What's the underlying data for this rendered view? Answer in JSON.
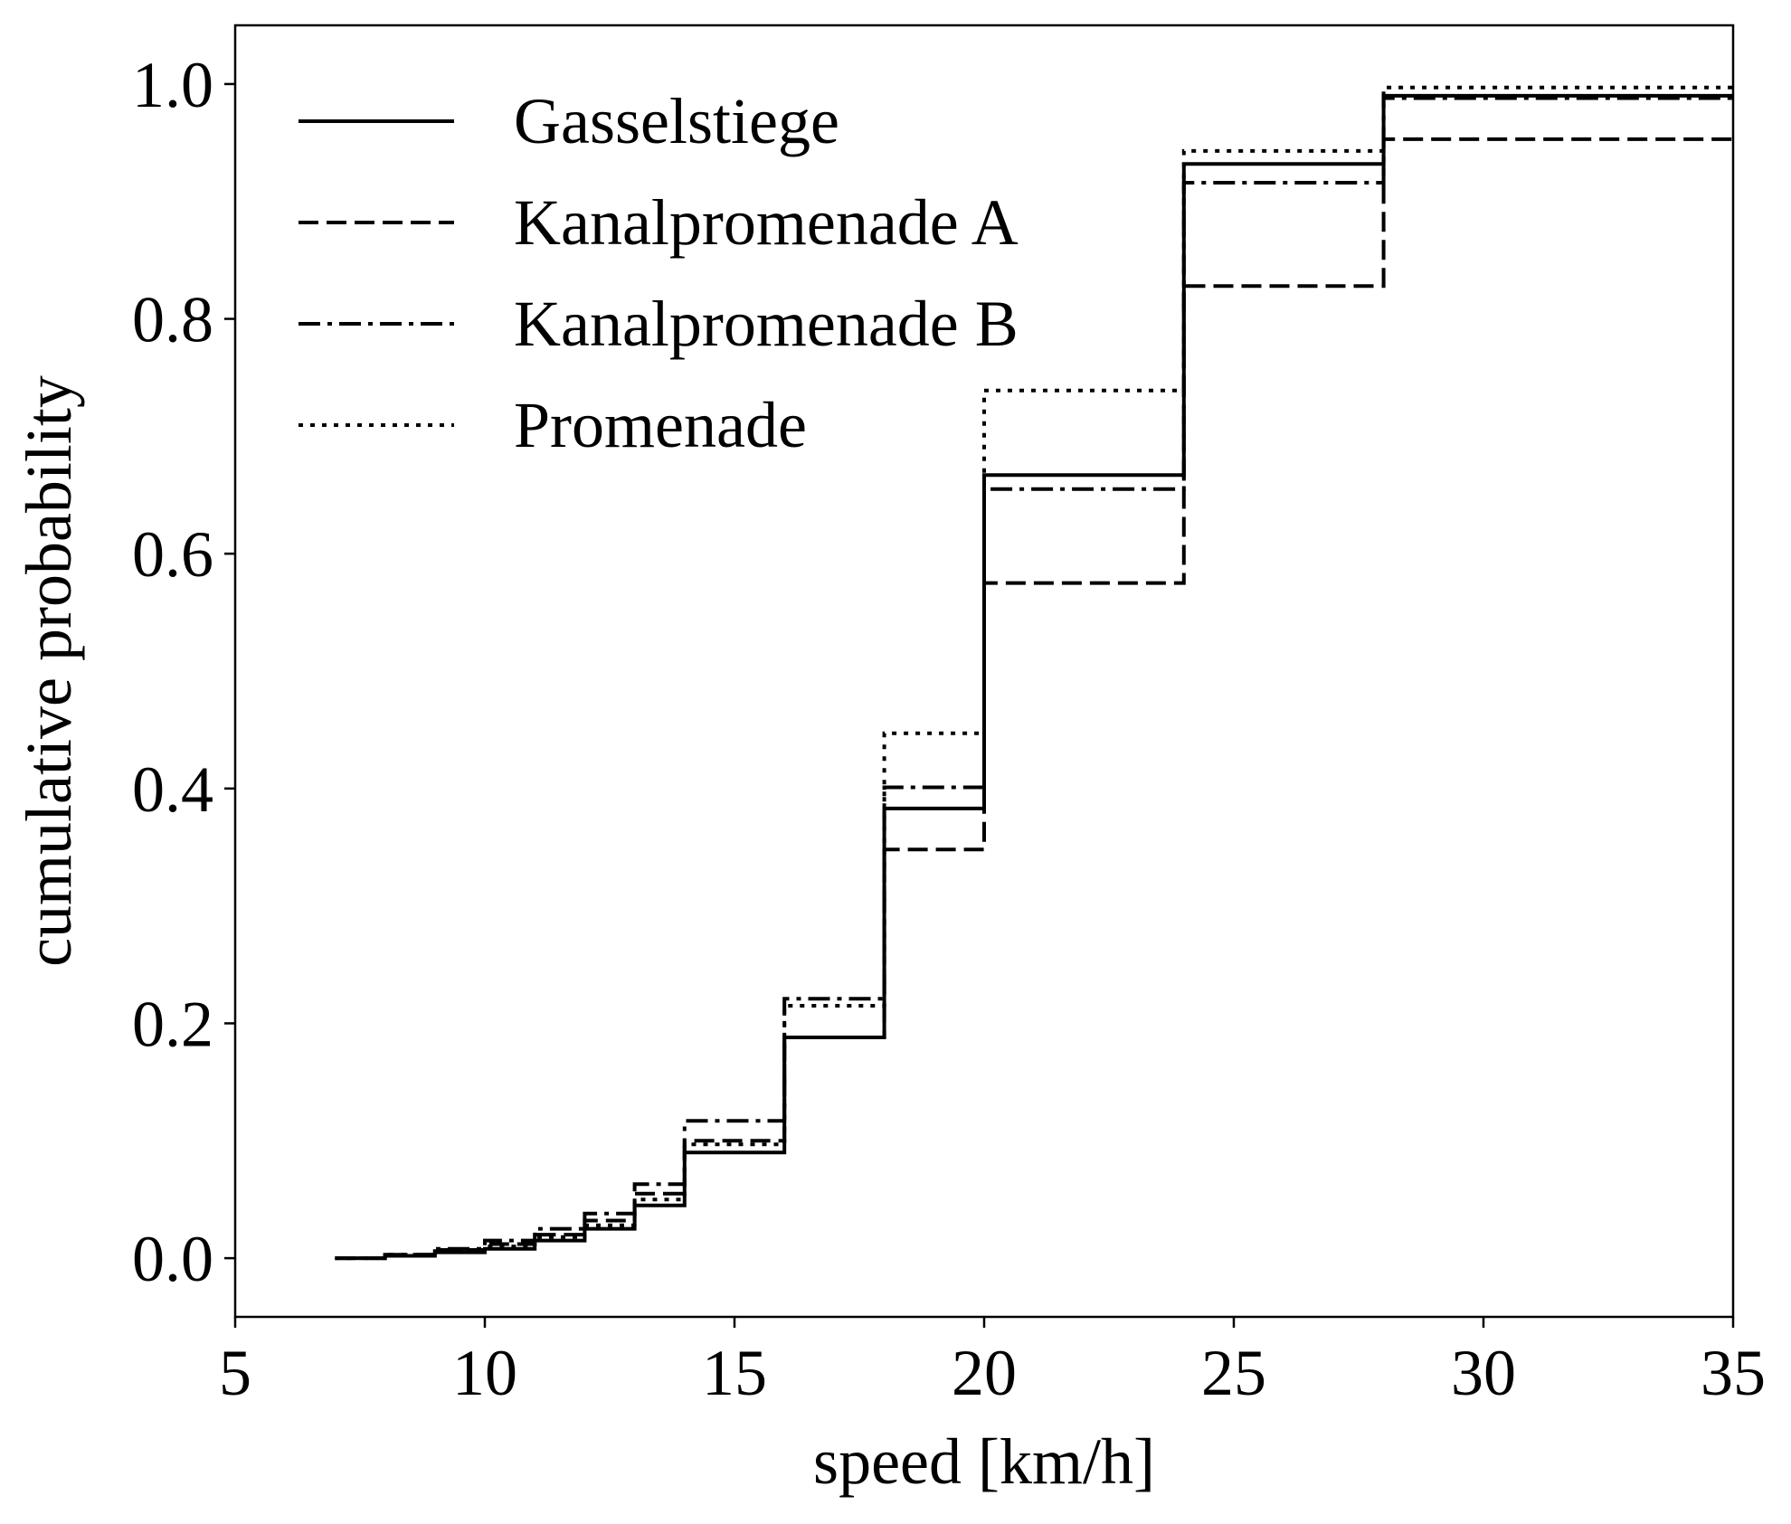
{
  "chart_data": {
    "type": "line",
    "title": "",
    "xlabel": "speed [km/h]",
    "ylabel": "cumulative probability",
    "xlim": [
      5,
      35
    ],
    "ylim": [
      -0.05,
      1.05
    ],
    "xticks": [
      5,
      10,
      15,
      20,
      25,
      30,
      35
    ],
    "xtick_labels": [
      "5",
      "10",
      "15",
      "20",
      "25",
      "30",
      "35"
    ],
    "yticks": [
      0.0,
      0.2,
      0.4,
      0.6,
      0.8,
      1.0
    ],
    "ytick_labels": [
      "0.0",
      "0.2",
      "0.4",
      "0.6",
      "0.8",
      "1.0"
    ],
    "grid": false,
    "legend_position": "top-left",
    "step": "post",
    "series": [
      {
        "name": "Gasselstiege",
        "line_style": "solid",
        "color": "#000000",
        "x": [
          7,
          8,
          9,
          10,
          11,
          12,
          13,
          14,
          16,
          18,
          20,
          24,
          28,
          35
        ],
        "y": [
          0.0,
          0.002,
          0.005,
          0.008,
          0.015,
          0.025,
          0.045,
          0.09,
          0.188,
          0.383,
          0.667,
          0.932,
          0.99,
          0.99
        ]
      },
      {
        "name": "Kanalpromenade A",
        "line_style": "dashed",
        "color": "#000000",
        "x": [
          7,
          8,
          9,
          10,
          11,
          12,
          13,
          14,
          16,
          18,
          20,
          24,
          28,
          35
        ],
        "y": [
          0.0,
          0.003,
          0.007,
          0.012,
          0.02,
          0.032,
          0.055,
          0.1,
          0.188,
          0.348,
          0.575,
          0.828,
          0.953,
          0.953
        ]
      },
      {
        "name": "Kanalpromenade B",
        "line_style": "dashdot",
        "color": "#000000",
        "x": [
          7,
          8,
          9,
          10,
          11,
          12,
          13,
          14,
          16,
          18,
          20,
          24,
          28,
          35
        ],
        "y": [
          0.0,
          0.003,
          0.008,
          0.015,
          0.025,
          0.038,
          0.063,
          0.117,
          0.221,
          0.401,
          0.655,
          0.916,
          0.988,
          0.988
        ]
      },
      {
        "name": "Promenade",
        "line_style": "dotted",
        "color": "#000000",
        "x": [
          7,
          8,
          9,
          10,
          11,
          12,
          13,
          14,
          16,
          18,
          20,
          24,
          28,
          35
        ],
        "y": [
          0.0,
          0.002,
          0.006,
          0.01,
          0.018,
          0.028,
          0.05,
          0.097,
          0.215,
          0.447,
          0.739,
          0.943,
          0.997,
          0.997
        ]
      }
    ]
  }
}
